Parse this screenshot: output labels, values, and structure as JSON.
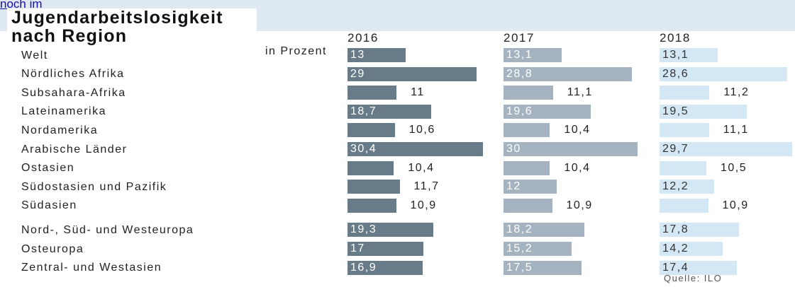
{
  "link_text": "noch im",
  "chart_data": {
    "type": "bar",
    "orientation": "horizontal",
    "title": "Jugendarbeitslosigkeit nach Region",
    "subtitle": "in Prozent",
    "source": "Quelle: ILO",
    "categories": [
      "Welt",
      "Nördliches Afrika",
      "Subsahara-Afrika",
      "Lateinamerika",
      "Nordamerika",
      "Arabische Länder",
      "Ostasien",
      "Südostasien und Pazifik",
      "Südasien",
      "Nord-, Süd- und Westeuropa",
      "Osteuropa",
      "Zentral- und Westasien"
    ],
    "xlim": [
      0,
      35
    ],
    "series": [
      {
        "name": "2016",
        "color": "#677b89",
        "label_color": "#ffffff",
        "values": [
          13,
          29,
          11,
          18.7,
          10.6,
          30.4,
          10.4,
          11.7,
          10.9,
          19.3,
          17,
          16.9
        ],
        "value_labels": [
          "13",
          "29",
          "11",
          "18,7",
          "10,6",
          "30,4",
          "10,4",
          "11,7",
          "10,9",
          "19,3",
          "17",
          "16,9"
        ]
      },
      {
        "name": "2017",
        "color": "#a4b3bf",
        "label_color": "#ffffff",
        "values": [
          13.1,
          28.8,
          11.1,
          19.6,
          10.4,
          30,
          10.4,
          12,
          10.9,
          18.2,
          15.2,
          17.5
        ],
        "value_labels": [
          "13,1",
          "28,8",
          "11,1",
          "19,6",
          "10,4",
          "30",
          "10,4",
          "12",
          "10,9",
          "18,2",
          "15,2",
          "17,5"
        ]
      },
      {
        "name": "2018",
        "color": "#d3e7f4",
        "label_color": "#333333",
        "values": [
          13.1,
          28.6,
          11.2,
          19.5,
          11.1,
          29.7,
          10.5,
          12.2,
          10.9,
          17.8,
          14.2,
          17.4
        ],
        "value_labels": [
          "13,1",
          "28,6",
          "11,2",
          "19,5",
          "11,1",
          "29,7",
          "10,5",
          "12,2",
          "10,9",
          "17,8",
          "14,2",
          "17,4"
        ]
      }
    ]
  }
}
